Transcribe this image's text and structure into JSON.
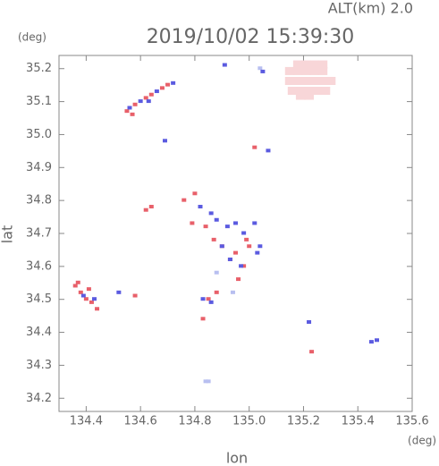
{
  "chart_data": {
    "type": "scatter",
    "title": "2019/10/02 15:39:30",
    "subtitle": "ALT(km) 2.0",
    "y_unit": "(deg)",
    "x_unit": "(deg)",
    "xlabel": "lon",
    "ylabel": "lat",
    "xlim": [
      134.3,
      135.6
    ],
    "xticks": [
      134.4,
      134.6,
      134.8,
      {
        "value": 135,
        "label": "135.0"
      },
      135.2,
      135.4,
      135.6
    ],
    "ylim": [
      34.16,
      35.24
    ],
    "yticks": [
      34.2,
      34.3,
      34.4,
      34.5,
      34.6,
      34.7,
      34.8,
      34.9,
      {
        "value": 35,
        "label": "35.0"
      },
      35.1,
      35.2
    ],
    "series": [
      {
        "color": "#f8d6d8",
        "x": [
          135.15,
          135.18,
          135.21,
          135.24,
          135.27,
          135.15,
          135.18,
          135.21,
          135.24,
          135.27,
          135.3,
          135.16,
          135.19,
          135.22,
          135.25,
          135.28,
          135.18,
          135.21,
          135.24,
          135.27,
          135.19,
          135.22
        ],
        "y": [
          35.19,
          35.19,
          35.19,
          35.19,
          35.19,
          35.16,
          35.16,
          35.16,
          35.16,
          35.16,
          35.16,
          35.13,
          35.13,
          35.13,
          35.13,
          35.13,
          35.21,
          35.21,
          35.21,
          35.21,
          35.115,
          35.115
        ]
      },
      {
        "color": "#b8bff0",
        "x": [
          134.84,
          134.85,
          135.04,
          134.94,
          134.88
        ],
        "y": [
          34.25,
          34.25,
          35.2,
          34.52,
          34.58
        ]
      },
      {
        "color": "#e8606a",
        "x": [
          134.55,
          134.58,
          134.62,
          134.64,
          134.68,
          134.7,
          134.57,
          134.62,
          134.64,
          135.02,
          134.36,
          134.38,
          134.4,
          134.42,
          134.37,
          134.41,
          134.44,
          134.58,
          134.83,
          135.23,
          134.76,
          134.8,
          134.79,
          134.84,
          134.87,
          134.9,
          134.93,
          134.95,
          134.98,
          135.0,
          134.96,
          134.85,
          134.88,
          134.99
        ],
        "y": [
          35.07,
          35.09,
          35.11,
          35.12,
          35.14,
          35.15,
          35.06,
          34.77,
          34.78,
          34.96,
          34.54,
          34.52,
          34.5,
          34.49,
          34.55,
          34.53,
          34.47,
          34.51,
          34.44,
          34.34,
          34.8,
          34.82,
          34.73,
          34.72,
          34.68,
          34.66,
          34.62,
          34.64,
          34.6,
          34.66,
          34.56,
          34.5,
          34.52,
          34.68
        ]
      },
      {
        "color": "#5b5be0",
        "x": [
          134.56,
          134.6,
          134.66,
          134.72,
          134.63,
          134.69,
          134.91,
          135.07,
          135.05,
          134.39,
          134.43,
          134.52,
          134.82,
          134.86,
          134.88,
          134.92,
          134.95,
          134.98,
          135.02,
          135.04,
          134.9,
          134.93,
          134.97,
          134.83,
          134.86,
          135.03,
          135.22,
          135.45,
          135.47
        ],
        "y": [
          35.08,
          35.1,
          35.13,
          35.155,
          35.1,
          34.98,
          35.21,
          34.95,
          35.19,
          34.51,
          34.5,
          34.52,
          34.78,
          34.76,
          34.74,
          34.72,
          34.73,
          34.7,
          34.73,
          34.66,
          34.66,
          34.62,
          34.6,
          34.5,
          34.49,
          34.64,
          34.43,
          34.37,
          34.375
        ]
      }
    ]
  }
}
